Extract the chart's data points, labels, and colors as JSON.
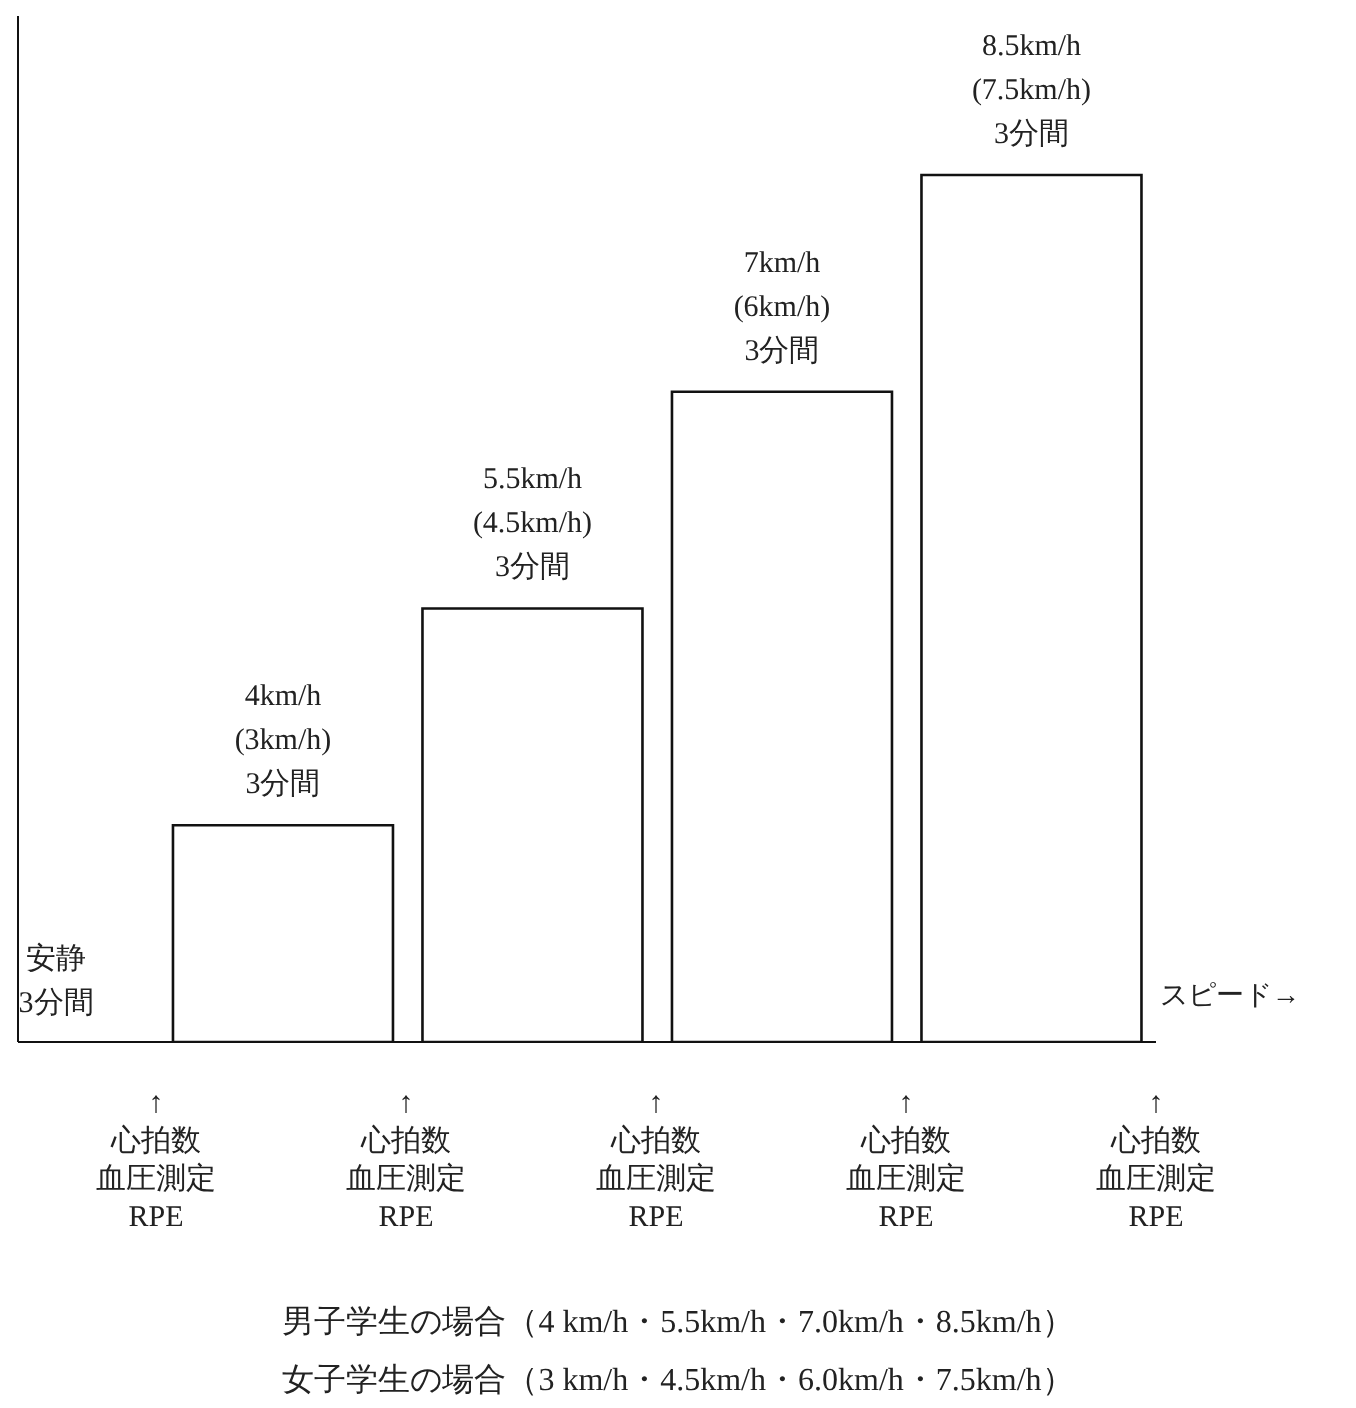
{
  "chart_data": {
    "type": "bar",
    "categories": [
      null,
      null,
      null,
      null
    ],
    "values": [
      4,
      5.5,
      7,
      8.5
    ],
    "ylim": [
      2.5,
      9.6
    ],
    "color": "#ffffff",
    "value_labels": [
      "4km/h\n(3km/h)\n3分間",
      "5.5km/h\n(4.5km/h)\n3分間",
      "7km/h\n(6km/h)\n3分間",
      "8.5km/h\n(7.5km/h)\n3分間"
    ],
    "xlabel": "スピード→",
    "annotations": [
      "安静",
      "3分間",
      "↑",
      "心拍数",
      "血圧測定",
      "RPE",
      "↑",
      "心拍数",
      "血圧測定",
      "RPE",
      "↑",
      "心拍数",
      "血圧測定",
      "RPE",
      "↑",
      "心拍数",
      "血圧測定",
      "RPE",
      "↑",
      "心拍数",
      "血圧測定",
      "RPE",
      "男子学生の場合（4 km/h・5.5km/h・7.0km/h・8.5km/h）",
      "女子学生の場合（3 km/h・4.5km/h・6.0km/h・7.5km/h）"
    ],
    "grid": false,
    "legend": false
  }
}
